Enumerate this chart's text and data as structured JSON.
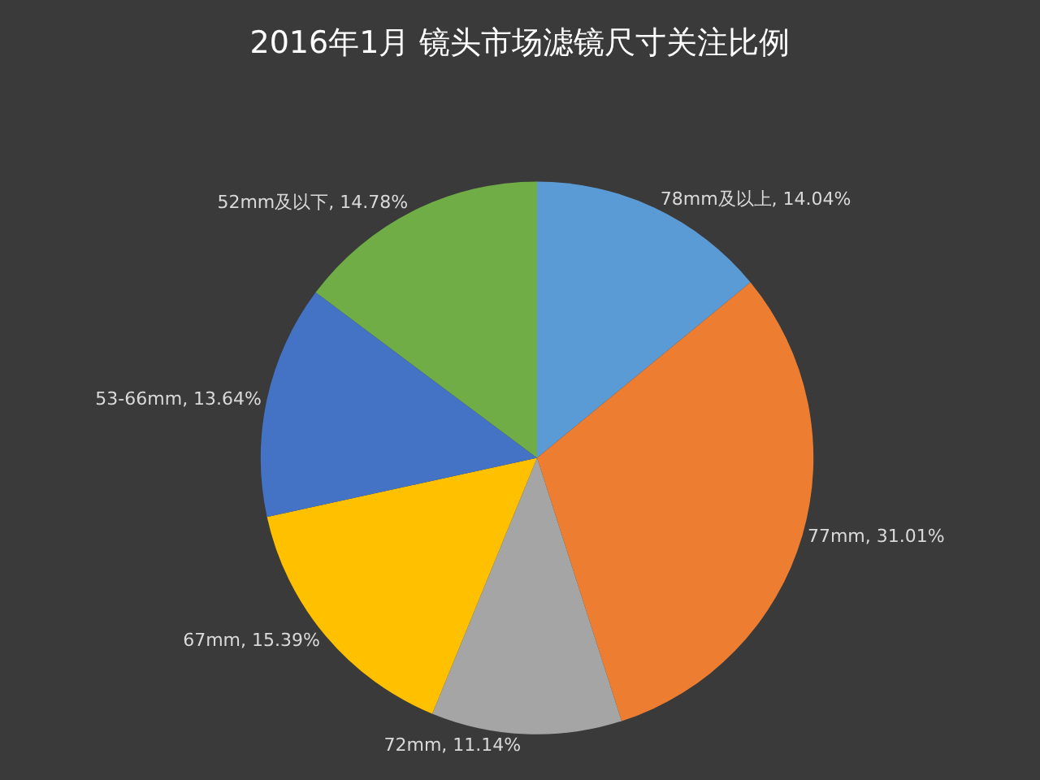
{
  "chart_data": {
    "type": "pie",
    "title": "2016年1月 镜头市场滤镜尺寸关注比例",
    "categories": [
      "78mm及以上",
      "77mm",
      "72mm",
      "67mm",
      "53-66mm",
      "52mm及以下"
    ],
    "values": [
      14.04,
      31.01,
      11.14,
      15.39,
      13.64,
      14.78
    ],
    "value_labels": [
      "14.04%",
      "31.01%",
      "11.14%",
      "15.39%",
      "13.64%",
      "14.78%"
    ],
    "colors": [
      "#5b9bd5",
      "#ed7d31",
      "#a5a5a5",
      "#ffc000",
      "#4472c4",
      "#70ad47"
    ],
    "legend": false
  }
}
